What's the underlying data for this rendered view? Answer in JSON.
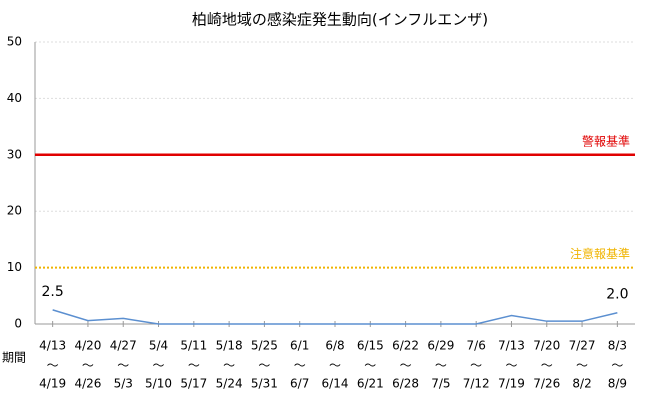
{
  "chart_data": {
    "type": "line",
    "title": "柏崎地域の感染症発生動向(インフルエンザ)",
    "x_label": "期間",
    "x_start": [
      "4/13",
      "4/20",
      "4/27",
      "5/4",
      "5/11",
      "5/18",
      "5/25",
      "6/1",
      "6/8",
      "6/15",
      "6/22",
      "6/29",
      "7/6",
      "7/13",
      "7/20",
      "7/27",
      "8/3"
    ],
    "separator": "〜",
    "x_end": [
      "4/19",
      "4/26",
      "5/3",
      "5/10",
      "5/17",
      "5/24",
      "5/31",
      "6/7",
      "6/14",
      "6/21",
      "6/28",
      "7/5",
      "7/12",
      "7/19",
      "7/26",
      "8/2",
      "8/9"
    ],
    "series": [
      {
        "color": "#5b8fd0",
        "values": [
          2.5,
          0.6,
          1.0,
          0,
          0,
          0,
          0,
          0,
          0,
          0,
          0,
          0,
          0,
          1.5,
          0.5,
          0.5,
          2.0
        ],
        "value_labels": [
          "2.5",
          null,
          null,
          null,
          null,
          null,
          null,
          null,
          null,
          null,
          null,
          null,
          null,
          null,
          null,
          null,
          "2.0"
        ]
      }
    ],
    "reference_lines": [
      {
        "label": "警報基準",
        "value": 30,
        "color": "#e00000",
        "style": "solid"
      },
      {
        "label": "注意報基準",
        "value": 10,
        "color": "#f0b400",
        "style": "dotted"
      }
    ],
    "ylim": [
      0,
      50
    ],
    "yticks": [
      0,
      10,
      20,
      30,
      40,
      50
    ],
    "grid": true
  }
}
